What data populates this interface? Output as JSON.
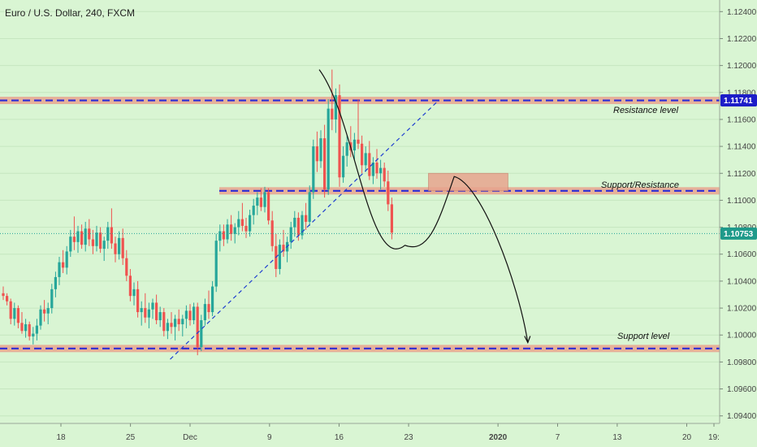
{
  "colors": {
    "background": "#d9f5d3",
    "up": "#26a69a",
    "down": "#ef5350",
    "zone_fill": "#e8a48e",
    "level_line": "#2b2bd6",
    "price_line": "#26a69a",
    "resistance_badge": "#1d1dc8",
    "price_badge": "#1e9a8a"
  },
  "chart_data": {
    "type": "candlestick",
    "title": "Euro / U.S. Dollar, 240, FXCM",
    "y_axis": {
      "range": [
        1.0935,
        1.1245
      ],
      "ticks": [
        "1.12400",
        "1.12200",
        "1.12000",
        "1.11800",
        "1.11600",
        "1.11400",
        "1.11200",
        "1.11000",
        "1.10800",
        "1.10600",
        "1.10400",
        "1.10200",
        "1.10000",
        "1.09800",
        "1.09600",
        "1.09400"
      ]
    },
    "x_axis": {
      "labels": [
        "18",
        "25",
        "Dec",
        "9",
        "16",
        "23",
        "2020",
        "7",
        "13",
        "20",
        "19:"
      ]
    },
    "levels": [
      {
        "name": "Resistance level",
        "value": 1.11741,
        "badge": "1.11741"
      },
      {
        "name": "Support/Resistance",
        "value": 1.1107
      },
      {
        "name": "Support level",
        "value": 1.099
      }
    ],
    "current_price": {
      "value": 1.10753,
      "badge": "1.10753"
    },
    "trendline": {
      "from": [
        "Nov 29",
        1.0982
      ],
      "to": [
        "Dec 26",
        1.1174
      ]
    },
    "projection_zone": {
      "from": "Dec 25",
      "to": "Jan 2",
      "low": 1.1107,
      "high": 1.112
    },
    "projection_path": [
      1.1197,
      1.1069,
      1.1117,
      1.0992
    ],
    "candles": [
      [
        1.1031,
        1.1036,
        1.1026,
        1.1029
      ],
      [
        1.1029,
        1.1031,
        1.1022,
        1.1025
      ],
      [
        1.1025,
        1.1027,
        1.1008,
        1.1012
      ],
      [
        1.1012,
        1.1024,
        1.1007,
        1.102
      ],
      [
        1.102,
        1.1022,
        1.1005,
        1.1009
      ],
      [
        1.1009,
        1.1017,
        1.1001,
        1.1003
      ],
      [
        1.1003,
        1.1012,
        1.0998,
        1.1008
      ],
      [
        1.1008,
        1.101,
        1.0996,
        1.0999
      ],
      [
        1.0999,
        1.1006,
        1.0993,
        1.1001
      ],
      [
        1.1001,
        1.1012,
        1.0996,
        1.1007
      ],
      [
        1.1007,
        1.1022,
        1.1004,
        1.1019
      ],
      [
        1.1019,
        1.1026,
        1.101,
        1.1016
      ],
      [
        1.1016,
        1.1024,
        1.1008,
        1.102
      ],
      [
        1.102,
        1.1038,
        1.1016,
        1.1034
      ],
      [
        1.1034,
        1.1047,
        1.1028,
        1.1043
      ],
      [
        1.1043,
        1.1058,
        1.1037,
        1.1054
      ],
      [
        1.1054,
        1.1063,
        1.1046,
        1.105
      ],
      [
        1.105,
        1.1066,
        1.1045,
        1.1062
      ],
      [
        1.1062,
        1.1078,
        1.1058,
        1.1073
      ],
      [
        1.1073,
        1.1088,
        1.1063,
        1.1069
      ],
      [
        1.1069,
        1.1081,
        1.1061,
        1.1077
      ],
      [
        1.1077,
        1.1082,
        1.1064,
        1.1067
      ],
      [
        1.1067,
        1.1084,
        1.1062,
        1.1079
      ],
      [
        1.1079,
        1.1086,
        1.1066,
        1.1071
      ],
      [
        1.1071,
        1.1078,
        1.106,
        1.1066
      ],
      [
        1.1066,
        1.1081,
        1.1062,
        1.1076
      ],
      [
        1.1076,
        1.108,
        1.1061,
        1.1064
      ],
      [
        1.1064,
        1.1073,
        1.1055,
        1.107
      ],
      [
        1.107,
        1.1084,
        1.1064,
        1.108
      ],
      [
        1.108,
        1.1094,
        1.1064,
        1.1068
      ],
      [
        1.1068,
        1.1073,
        1.1054,
        1.106
      ],
      [
        1.106,
        1.1077,
        1.1056,
        1.1072
      ],
      [
        1.1072,
        1.1079,
        1.1052,
        1.1057
      ],
      [
        1.1057,
        1.1063,
        1.104,
        1.1044
      ],
      [
        1.1044,
        1.1049,
        1.1025,
        1.1029
      ],
      [
        1.1029,
        1.1039,
        1.1022,
        1.1034
      ],
      [
        1.1034,
        1.104,
        1.1013,
        1.1017
      ],
      [
        1.1017,
        1.1025,
        1.1007,
        1.102
      ],
      [
        1.102,
        1.1031,
        1.1009,
        1.1013
      ],
      [
        1.1013,
        1.1024,
        1.1005,
        1.1019
      ],
      [
        1.1019,
        1.1027,
        1.1012,
        1.1024
      ],
      [
        1.1024,
        1.103,
        1.1008,
        1.1011
      ],
      [
        1.1011,
        1.1021,
        1.1006,
        1.1017
      ],
      [
        1.1017,
        1.102,
        1.0999,
        1.1003
      ],
      [
        1.1003,
        1.1012,
        1.0997,
        1.1009
      ],
      [
        1.1009,
        1.1017,
        1.1001,
        1.1006
      ],
      [
        1.1006,
        1.1015,
        1.0996,
        1.1012
      ],
      [
        1.1012,
        1.1019,
        1.1003,
        1.1008
      ],
      [
        1.1008,
        1.1015,
        1.0999,
        1.1012
      ],
      [
        1.1012,
        1.1022,
        1.1005,
        1.1018
      ],
      [
        1.1018,
        1.1023,
        1.1007,
        1.1011
      ],
      [
        1.1011,
        1.1024,
        1.1008,
        1.1021
      ],
      [
        1.1021,
        1.1024,
        1.0985,
        1.0991
      ],
      [
        1.0991,
        1.1015,
        1.0988,
        1.1011
      ],
      [
        1.1011,
        1.1027,
        1.1007,
        1.1023
      ],
      [
        1.1023,
        1.1033,
        1.1012,
        1.1017
      ],
      [
        1.1017,
        1.104,
        1.1014,
        1.1036
      ],
      [
        1.1036,
        1.1075,
        1.1032,
        1.107
      ],
      [
        1.107,
        1.1082,
        1.1062,
        1.1077
      ],
      [
        1.1077,
        1.1082,
        1.1066,
        1.1071
      ],
      [
        1.1071,
        1.1086,
        1.1068,
        1.1082
      ],
      [
        1.1082,
        1.1089,
        1.107,
        1.1075
      ],
      [
        1.1075,
        1.1083,
        1.1068,
        1.108
      ],
      [
        1.108,
        1.1092,
        1.1074,
        1.1086
      ],
      [
        1.1086,
        1.1098,
        1.1077,
        1.1081
      ],
      [
        1.1081,
        1.1087,
        1.1072,
        1.1077
      ],
      [
        1.1077,
        1.1093,
        1.1073,
        1.1089
      ],
      [
        1.1089,
        1.1101,
        1.1082,
        1.1096
      ],
      [
        1.1096,
        1.1106,
        1.1089,
        1.1102
      ],
      [
        1.1102,
        1.1109,
        1.1092,
        1.1095
      ],
      [
        1.1095,
        1.111,
        1.1091,
        1.1106
      ],
      [
        1.1106,
        1.1109,
        1.1082,
        1.1085
      ],
      [
        1.1085,
        1.1092,
        1.1062,
        1.1066
      ],
      [
        1.1066,
        1.1075,
        1.1043,
        1.1049
      ],
      [
        1.1049,
        1.1071,
        1.1045,
        1.1067
      ],
      [
        1.1067,
        1.1078,
        1.1058,
        1.1062
      ],
      [
        1.1062,
        1.1073,
        1.1054,
        1.1069
      ],
      [
        1.1069,
        1.1084,
        1.1064,
        1.108
      ],
      [
        1.108,
        1.1092,
        1.1073,
        1.1087
      ],
      [
        1.1087,
        1.1091,
        1.107,
        1.1074
      ],
      [
        1.1074,
        1.1092,
        1.1071,
        1.1089
      ],
      [
        1.1089,
        1.1098,
        1.1078,
        1.1084
      ],
      [
        1.1084,
        1.1111,
        1.1081,
        1.1106
      ],
      [
        1.1106,
        1.1145,
        1.1101,
        1.114
      ],
      [
        1.114,
        1.1151,
        1.1121,
        1.1129
      ],
      [
        1.1129,
        1.1152,
        1.1124,
        1.1146
      ],
      [
        1.1146,
        1.1156,
        1.1102,
        1.1108
      ],
      [
        1.1108,
        1.1175,
        1.1104,
        1.1168
      ],
      [
        1.1168,
        1.1197,
        1.1152,
        1.116
      ],
      [
        1.116,
        1.1183,
        1.115,
        1.1178
      ],
      [
        1.1178,
        1.1186,
        1.111,
        1.1117
      ],
      [
        1.1117,
        1.114,
        1.1113,
        1.1133
      ],
      [
        1.1133,
        1.1148,
        1.1125,
        1.1143
      ],
      [
        1.1143,
        1.1155,
        1.1132,
        1.1137
      ],
      [
        1.1137,
        1.115,
        1.113,
        1.1145
      ],
      [
        1.1145,
        1.1175,
        1.1138,
        1.1142
      ],
      [
        1.1142,
        1.1148,
        1.112,
        1.1126
      ],
      [
        1.1126,
        1.114,
        1.1121,
        1.1135
      ],
      [
        1.1135,
        1.1144,
        1.1115,
        1.1118
      ],
      [
        1.1118,
        1.1132,
        1.1112,
        1.1128
      ],
      [
        1.1128,
        1.1138,
        1.1116,
        1.112
      ],
      [
        1.112,
        1.113,
        1.1108,
        1.1124
      ],
      [
        1.1124,
        1.1128,
        1.111,
        1.1114
      ],
      [
        1.1114,
        1.1122,
        1.1092,
        1.1097
      ],
      [
        1.1097,
        1.1102,
        1.1071,
        1.1076
      ]
    ]
  },
  "annotations": {
    "resistance_label": "Resistance level",
    "support_resistance_label": "Support/Resistance",
    "support_label": "Support level"
  }
}
